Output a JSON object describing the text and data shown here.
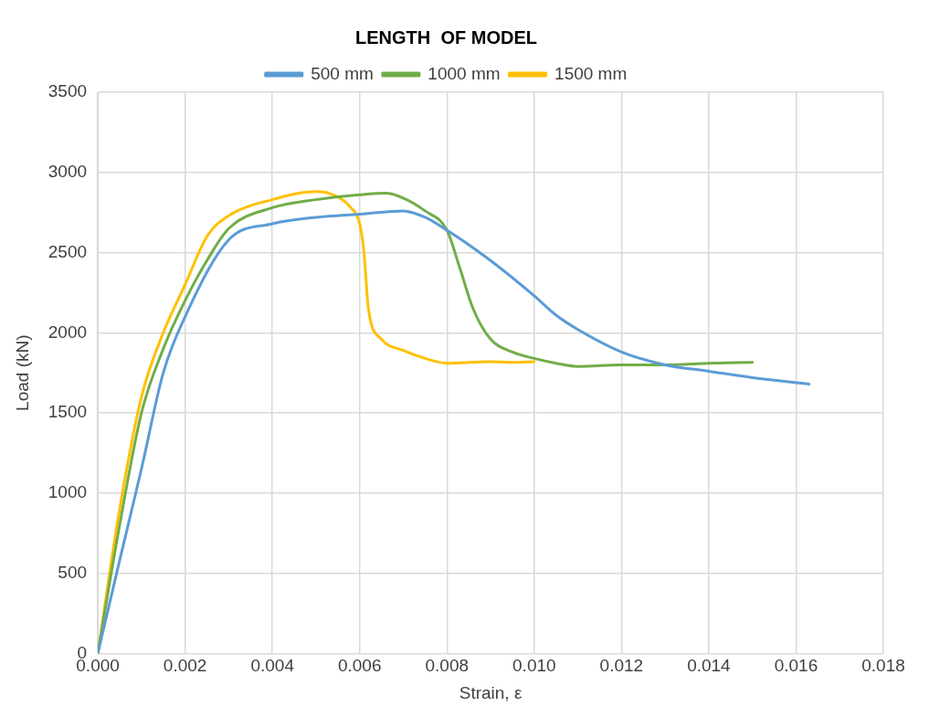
{
  "chart_data": {
    "type": "line",
    "title": "LENGTH  OF MODEL",
    "xlabel": "Strain, ε",
    "ylabel": "Load (kN)",
    "xlim": [
      0,
      0.018
    ],
    "xticks": [
      {
        "value": 0,
        "label": "0.000"
      },
      {
        "value": 0.002,
        "label": "0.002"
      },
      {
        "value": 0.004,
        "label": "0.004"
      },
      {
        "value": 0.006,
        "label": "0.006"
      },
      {
        "value": 0.008,
        "label": "0.008"
      },
      {
        "value": 0.01,
        "label": "0.010"
      },
      {
        "value": 0.012,
        "label": "0.012"
      },
      {
        "value": 0.014,
        "label": "0.014"
      },
      {
        "value": 0.016,
        "label": "0.016"
      },
      {
        "value": 0.018,
        "label": "0.018"
      }
    ],
    "ylim": [
      0,
      3500
    ],
    "yticks": [
      0,
      500,
      1000,
      1500,
      2000,
      2500,
      3000,
      3500
    ],
    "grid": true,
    "legend": "top",
    "marker": "none",
    "line_style": "solid",
    "series": [
      {
        "name": "500 mm",
        "color": "#5b9bd5",
        "x": [
          0,
          0.0005,
          0.001,
          0.0015,
          0.002,
          0.003,
          0.004,
          0.005,
          0.006,
          0.007,
          0.0075,
          0.008,
          0.009,
          0.01,
          0.0105,
          0.011,
          0.012,
          0.013,
          0.014,
          0.015,
          0.0163
        ],
        "values": [
          0,
          580,
          1150,
          1750,
          2100,
          2580,
          2680,
          2720,
          2740,
          2760,
          2720,
          2640,
          2450,
          2230,
          2110,
          2020,
          1880,
          1800,
          1760,
          1720,
          1680
        ]
      },
      {
        "name": "1000 mm",
        "color": "#70ad47",
        "x": [
          0,
          0.0005,
          0.001,
          0.0015,
          0.002,
          0.0025,
          0.003,
          0.004,
          0.005,
          0.006,
          0.0066,
          0.007,
          0.0075,
          0.008,
          0.0083,
          0.0086,
          0.009,
          0.0095,
          0.01,
          0.0105,
          0.011,
          0.012,
          0.013,
          0.014,
          0.015
        ],
        "values": [
          0,
          800,
          1500,
          1900,
          2200,
          2450,
          2650,
          2780,
          2830,
          2860,
          2870,
          2840,
          2760,
          2640,
          2400,
          2150,
          1960,
          1880,
          1840,
          1810,
          1790,
          1800,
          1800,
          1810,
          1815
        ]
      },
      {
        "name": "1500 mm",
        "color": "#ffc000",
        "x": [
          0,
          0.0005,
          0.001,
          0.0015,
          0.002,
          0.0025,
          0.003,
          0.004,
          0.005,
          0.0053,
          0.0058,
          0.006,
          0.0061,
          0.0062,
          0.0065,
          0.007,
          0.0075,
          0.008,
          0.009,
          0.0095,
          0.01
        ],
        "values": [
          0,
          900,
          1600,
          2000,
          2300,
          2600,
          2730,
          2830,
          2880,
          2870,
          2780,
          2680,
          2500,
          2150,
          1960,
          1890,
          1840,
          1810,
          1820,
          1815,
          1820
        ]
      }
    ]
  }
}
